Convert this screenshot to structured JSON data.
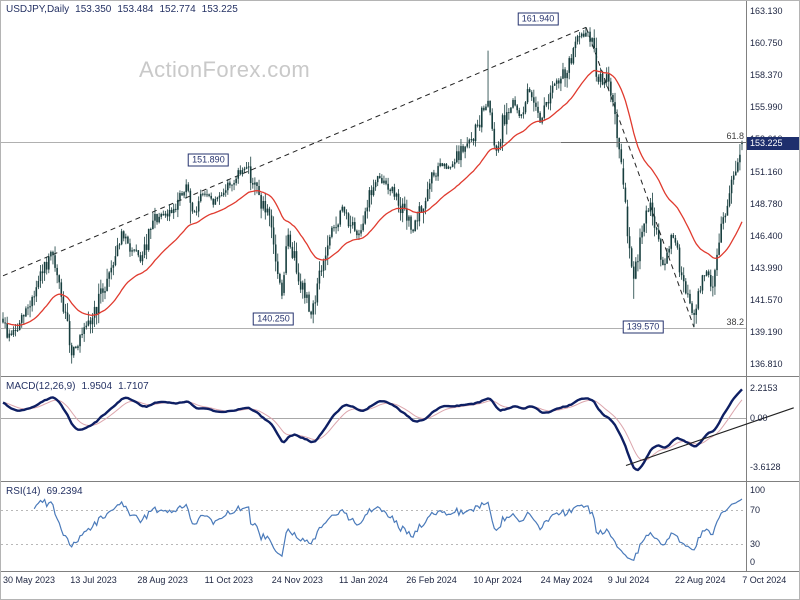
{
  "window": {
    "symbol_title": "USDJPY,Daily",
    "ohlc": {
      "open": "153.350",
      "high": "153.484",
      "low": "152.774",
      "close": "153.225"
    },
    "watermark": "ActionForex.com"
  },
  "colors": {
    "background": "#ffffff",
    "candle": "#173e3e",
    "ma_line": "#e03b2f",
    "macd_line": "#0e1f63",
    "macd_signal": "#dca6ad",
    "rsi_line": "#4a7aba",
    "grid_line": "#b0b0b0",
    "separator": "#808080",
    "trendline": "#222222",
    "annotation": "#26336e",
    "title_text": "#253264",
    "axis_text": "#1c2440",
    "price_tag_bg": "#1e2f6d",
    "price_tag_text": "#ffffff",
    "watermark_text": "#c9c9c9",
    "fib_label_text": "#3c3c3c"
  },
  "chart_data": {
    "type": "candlestick",
    "symbol": "USDJPY",
    "timeframe": "Daily",
    "title": "USDJPY,Daily 153.350 153.484 152.774 153.225",
    "current_price": "153.225",
    "x_labels": [
      "30 May 2023",
      "13 Jul 2023",
      "28 Aug 2023",
      "11 Oct 2023",
      "24 Nov 2023",
      "11 Jan 2024",
      "26 Feb 2024",
      "10 Apr 2024",
      "24 May 2024",
      "9 Jul 2024",
      "22 Aug 2024",
      "7 Oct 2024"
    ],
    "y_axis_labels": [
      "163.130",
      "160.750",
      "158.370",
      "155.990",
      "153.610",
      "151.160",
      "148.780",
      "146.400",
      "143.990",
      "141.570",
      "139.190",
      "136.810"
    ],
    "price_range": {
      "top": 163.9,
      "bottom": 136.0
    },
    "price_path_pivots": [
      [
        0,
        140.2
      ],
      [
        0.006,
        138.9
      ],
      [
        0.02,
        139.4
      ],
      [
        0.04,
        141.8
      ],
      [
        0.065,
        145.0
      ],
      [
        0.08,
        141.5
      ],
      [
        0.093,
        137.8
      ],
      [
        0.115,
        139.5
      ],
      [
        0.14,
        143.0
      ],
      [
        0.16,
        146.5
      ],
      [
        0.175,
        145.2
      ],
      [
        0.188,
        144.6
      ],
      [
        0.205,
        147.6
      ],
      [
        0.222,
        147.9
      ],
      [
        0.237,
        149.0
      ],
      [
        0.25,
        150.0
      ],
      [
        0.256,
        147.8
      ],
      [
        0.27,
        149.6
      ],
      [
        0.285,
        148.8
      ],
      [
        0.3,
        149.9
      ],
      [
        0.315,
        150.6
      ],
      [
        0.329,
        151.7
      ],
      [
        0.345,
        149.5
      ],
      [
        0.36,
        147.5
      ],
      [
        0.377,
        142.0
      ],
      [
        0.385,
        146.2
      ],
      [
        0.395,
        144.6
      ],
      [
        0.405,
        142.6
      ],
      [
        0.417,
        140.5
      ],
      [
        0.43,
        143.8
      ],
      [
        0.445,
        146.4
      ],
      [
        0.459,
        148.4
      ],
      [
        0.47,
        147.4
      ],
      [
        0.479,
        146.2
      ],
      [
        0.495,
        149.3
      ],
      [
        0.507,
        150.6
      ],
      [
        0.52,
        150.2
      ],
      [
        0.533,
        149.3
      ],
      [
        0.545,
        147.8
      ],
      [
        0.555,
        146.8
      ],
      [
        0.57,
        148.8
      ],
      [
        0.58,
        150.5
      ],
      [
        0.592,
        151.7
      ],
      [
        0.605,
        151.3
      ],
      [
        0.618,
        152.6
      ],
      [
        0.632,
        153.3
      ],
      [
        0.648,
        155.3
      ],
      [
        0.656,
        156.6
      ],
      [
        0.662,
        154.8
      ],
      [
        0.668,
        152.5
      ],
      [
        0.678,
        155.3
      ],
      [
        0.69,
        156.3
      ],
      [
        0.7,
        155.2
      ],
      [
        0.71,
        157.0
      ],
      [
        0.72,
        156.7
      ],
      [
        0.727,
        154.9
      ],
      [
        0.74,
        157.1
      ],
      [
        0.752,
        157.8
      ],
      [
        0.764,
        158.9
      ],
      [
        0.776,
        160.7
      ],
      [
        0.789,
        161.6
      ],
      [
        0.797,
        161.0
      ],
      [
        0.803,
        158.8
      ],
      [
        0.812,
        157.5
      ],
      [
        0.82,
        158.4
      ],
      [
        0.827,
        155.5
      ],
      [
        0.834,
        152.6
      ],
      [
        0.843,
        148.0
      ],
      [
        0.853,
        143.0
      ],
      [
        0.862,
        146.0
      ],
      [
        0.876,
        149.0
      ],
      [
        0.886,
        145.8
      ],
      [
        0.896,
        143.9
      ],
      [
        0.905,
        146.6
      ],
      [
        0.912,
        145.0
      ],
      [
        0.922,
        142.5
      ],
      [
        0.935,
        140.2
      ],
      [
        0.944,
        142.8
      ],
      [
        0.952,
        143.6
      ],
      [
        0.96,
        142.8
      ],
      [
        0.97,
        146.5
      ],
      [
        0.98,
        149.0
      ],
      [
        0.99,
        150.8
      ],
      [
        1,
        153.1
      ]
    ],
    "spikes": [
      [
        0.253,
        147.3,
        "low"
      ],
      [
        0.656,
        160.2,
        "high"
      ],
      [
        0.853,
        141.68,
        "low"
      ]
    ],
    "price_markers": [
      {
        "label": "161.940",
        "x": 0.789,
        "price": 161.94,
        "pin": "high",
        "box_x": 0.724,
        "box_price": 162.55
      },
      {
        "label": "151.890",
        "x": 0.329,
        "price": 151.89,
        "pin": "high",
        "box_x": 0.278,
        "box_price": 152.05
      },
      {
        "label": "140.250",
        "x": 0.417,
        "price": 140.25,
        "pin": "low",
        "box_x": 0.366,
        "box_price": 140.15
      },
      {
        "label": "139.570",
        "x": 0.935,
        "price": 139.57,
        "pin": "low",
        "box_x": 0.866,
        "box_price": 139.6
      }
    ],
    "fib_levels": [
      {
        "label": "61.8",
        "price": 153.39
      },
      {
        "label": "38.2",
        "price": 139.5
      }
    ],
    "trendlines": [
      {
        "from": [
          0.0,
          143.4
        ],
        "to": [
          0.789,
          161.94
        ],
        "style": "dashed"
      },
      {
        "from": [
          0.789,
          161.94
        ],
        "to": [
          0.935,
          139.57
        ],
        "style": "dashed"
      }
    ],
    "moving_average": {
      "period": 35
    },
    "indicators": {
      "macd": {
        "label": "MACD(12,26,9)",
        "value": "1.9504",
        "signal_value": "1.7107",
        "axis_labels": [
          "2.2153",
          "0.00",
          "-3.6128"
        ],
        "trendline": {
          "from": [
            0.843,
            -3.5
          ],
          "to": [
            1.07,
            0.75
          ]
        }
      },
      "rsi": {
        "label": "RSI(14)",
        "value": "69.2394",
        "axis_labels": [
          "100",
          "70",
          "30",
          "0"
        ],
        "levels": [
          70,
          30
        ]
      }
    }
  }
}
